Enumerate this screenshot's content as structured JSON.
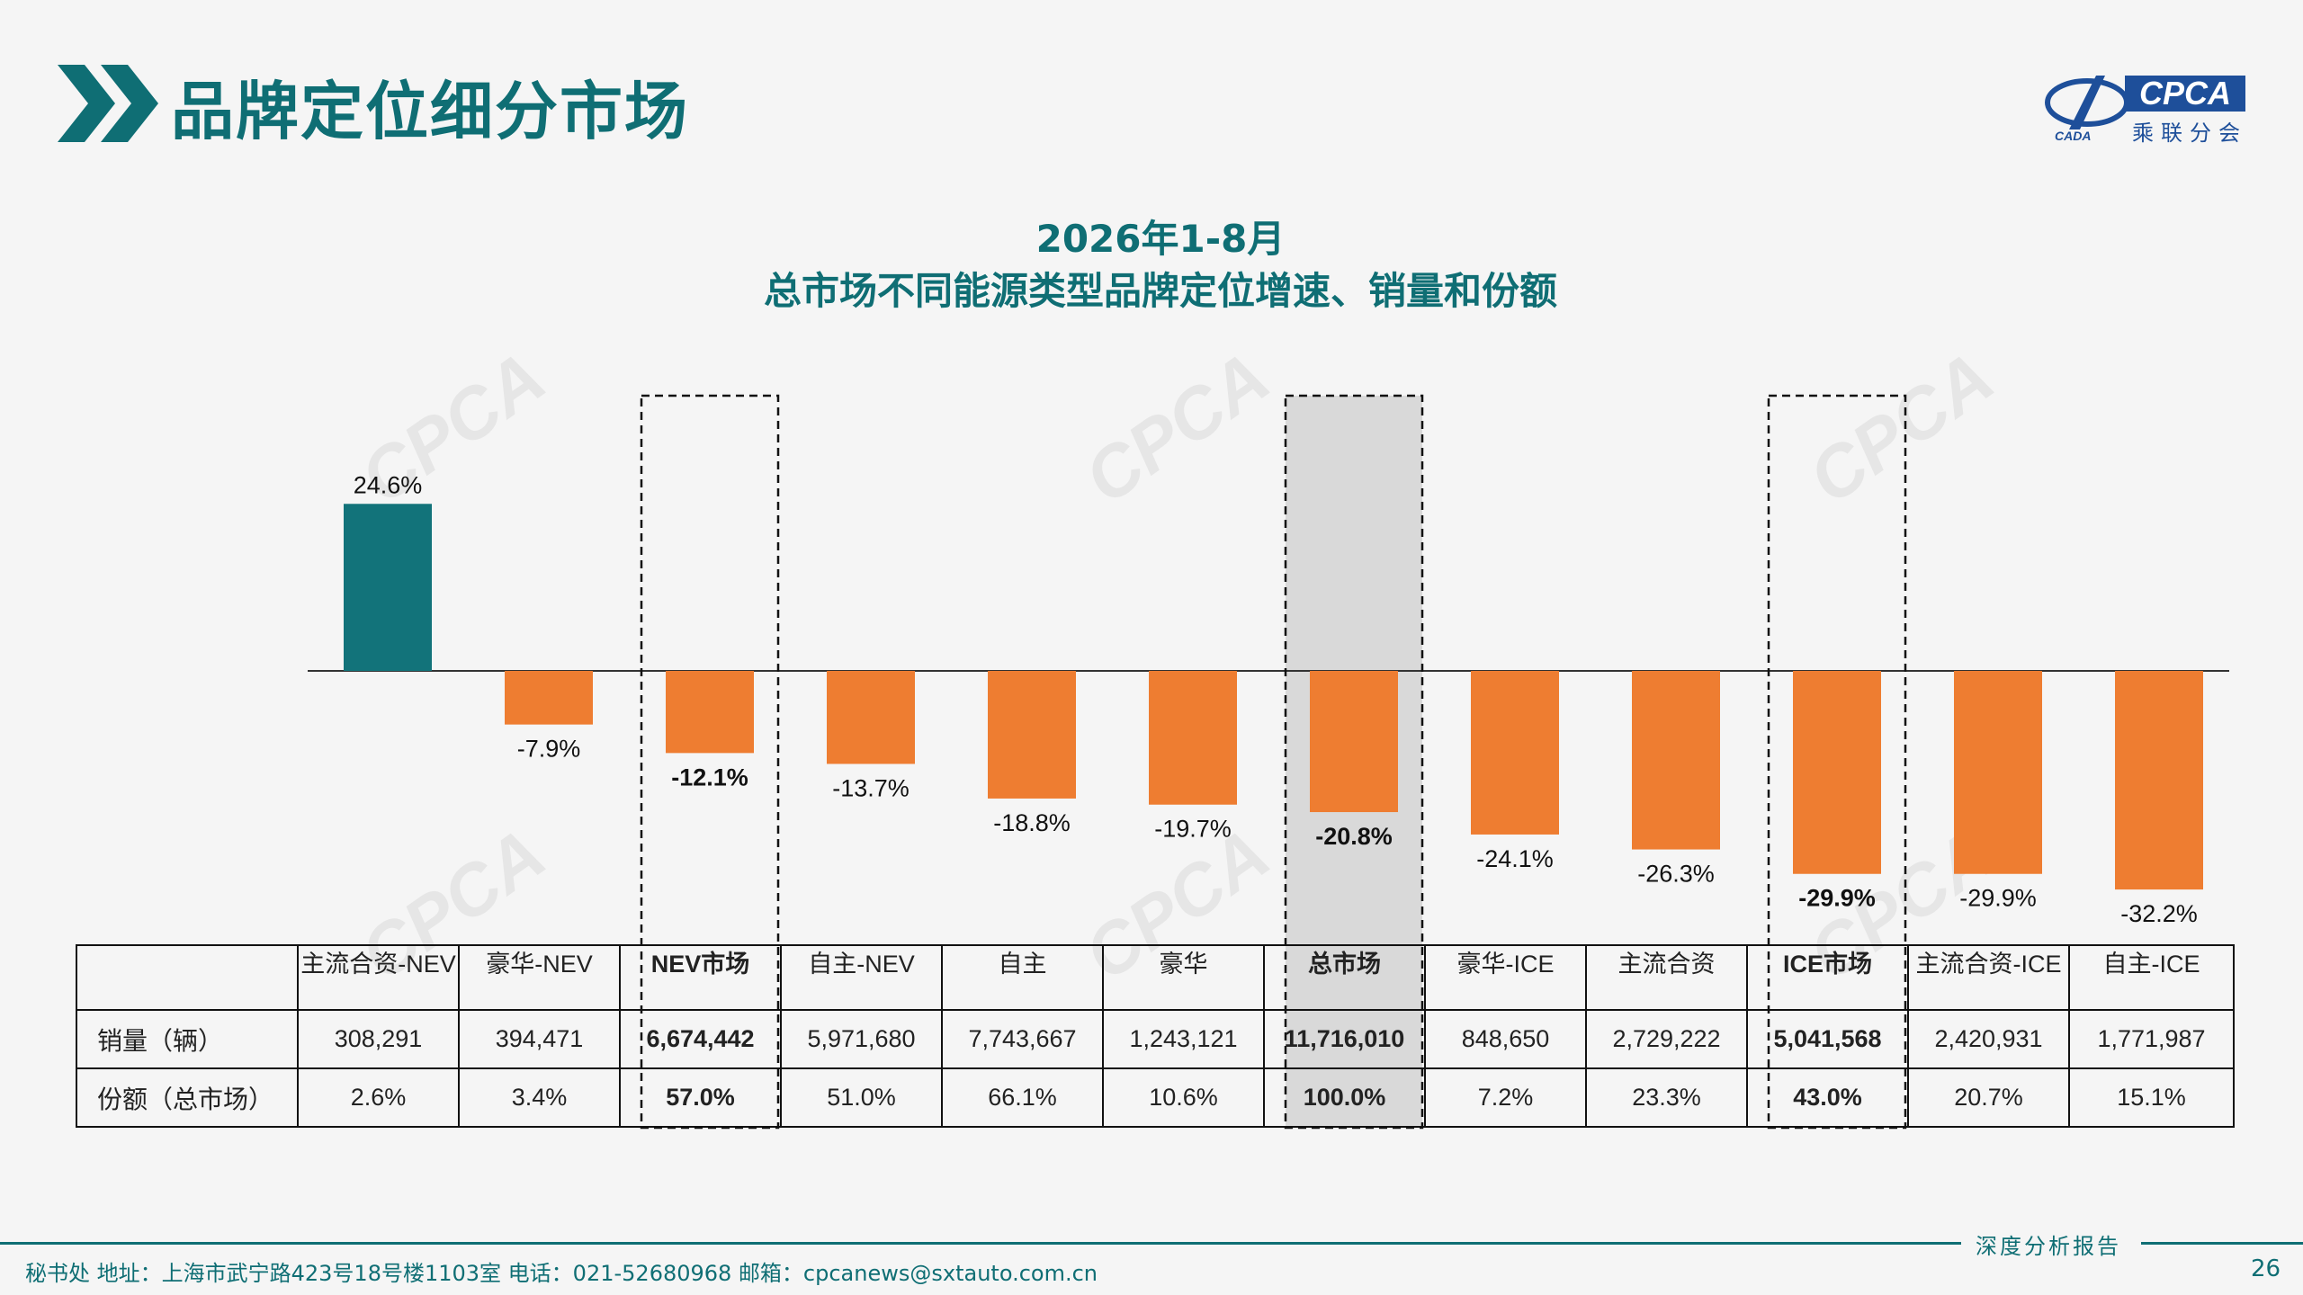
{
  "header": {
    "title": "品牌定位细分市场",
    "logo_text": "CPCA",
    "logo_cn": "乘联分会",
    "logo_mark_text": "CADA"
  },
  "chart_data": {
    "type": "bar",
    "title_line1": "2026年1-8月",
    "title_line2": "总市场不同能源类型品牌定位增速、销量和份额",
    "categories": [
      "主流合资-NEV",
      "豪华-NEV",
      "NEV市场",
      "自主-NEV",
      "自主",
      "豪华",
      "总市场",
      "豪华-ICE",
      "主流合资",
      "ICE市场",
      "主流合资-ICE",
      "自主-ICE"
    ],
    "values": [
      24.6,
      -7.9,
      -12.1,
      -13.7,
      -18.8,
      -19.7,
      -20.8,
      -24.1,
      -26.3,
      -29.9,
      -29.9,
      -32.2
    ],
    "value_labels": [
      "24.6%",
      "-7.9%",
      "-12.1%",
      "-13.7%",
      "-18.8%",
      "-19.7%",
      "-20.8%",
      "-24.1%",
      "-26.3%",
      "-29.9%",
      "-29.9%",
      "-32.2%"
    ],
    "unit": "%",
    "colors": {
      "positive": "#12737a",
      "negative": "#ee7d31",
      "total_highlight_bg": "#d9d9d9"
    },
    "highlighted_columns": [
      "NEV市场",
      "总市场",
      "ICE市场"
    ],
    "shaded_column": "总市场",
    "legend": "none",
    "grid": false
  },
  "table": {
    "header_cells": [
      "主流合资-NEV",
      "豪华-NEV",
      "NEV市场",
      "自主-NEV",
      "自主",
      "豪华",
      "总市场",
      "豪华-ICE",
      "主流合资",
      "ICE市场",
      "主流合资-ICE",
      "自主-ICE"
    ],
    "rows": [
      {
        "label": "销量（辆）",
        "cells": [
          "308,291",
          "394,471",
          "6,674,442",
          "5,971,680",
          "7,743,667",
          "1,243,121",
          "11,716,010",
          "848,650",
          "2,729,222",
          "5,041,568",
          "2,420,931",
          "1,771,987"
        ]
      },
      {
        "label": "份额（总市场）",
        "cells": [
          "2.6%",
          "3.4%",
          "57.0%",
          "51.0%",
          "66.1%",
          "10.6%",
          "100.0%",
          "7.2%",
          "23.3%",
          "43.0%",
          "20.7%",
          "15.1%"
        ]
      }
    ]
  },
  "footer": {
    "report_label": "深度分析报告",
    "contact": "秘书处   地址：上海市武宁路423号18号楼1103室  电话：021-52680968   邮箱：cpcanews@sxtauto.com.cn",
    "page_number": "26"
  },
  "watermark_text": "CPCA"
}
